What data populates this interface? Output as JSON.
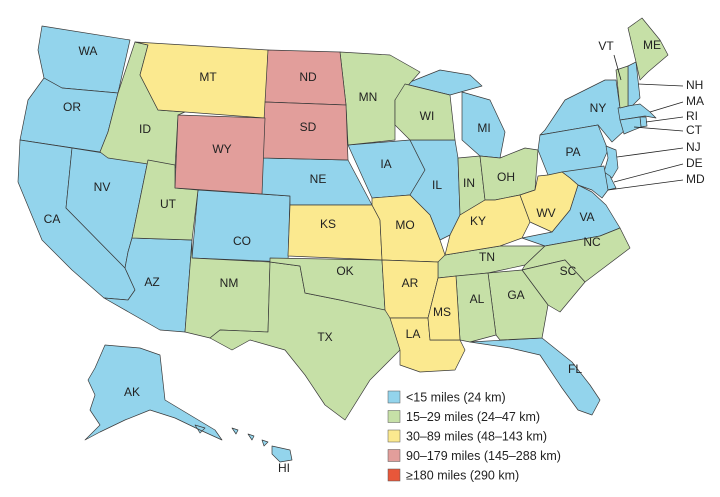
{
  "legend": {
    "items": [
      {
        "label": "<15 miles (24 km)",
        "color": "#93d4ec",
        "states": [
          "WA",
          "OR",
          "CA",
          "NV",
          "AZ",
          "CO",
          "NE",
          "IA",
          "IL",
          "MI",
          "NY",
          "PA",
          "VA",
          "FL",
          "AK",
          "HI",
          "NH",
          "MA",
          "RI",
          "CT",
          "NJ",
          "DE",
          "MD"
        ]
      },
      {
        "label": "15–29 miles (24–47 km)",
        "color": "#c6e0a7",
        "states": [
          "ID",
          "UT",
          "NM",
          "TX",
          "OK",
          "MN",
          "WI",
          "IN",
          "OH",
          "TN",
          "NC",
          "SC",
          "GA",
          "AL",
          "ME",
          "VT"
        ]
      },
      {
        "label": "30–89 miles (48–143 km)",
        "color": "#fbe98f",
        "states": [
          "MT",
          "KS",
          "MO",
          "AR",
          "LA",
          "MS",
          "KY",
          "WV"
        ]
      },
      {
        "label": "90–179 miles (145–288 km)",
        "color": "#e29e9b",
        "states": [
          "ND",
          "SD",
          "WY"
        ]
      },
      {
        "label": "≥180 miles (290 km)",
        "color": "#e8573a",
        "states": []
      }
    ]
  }
}
